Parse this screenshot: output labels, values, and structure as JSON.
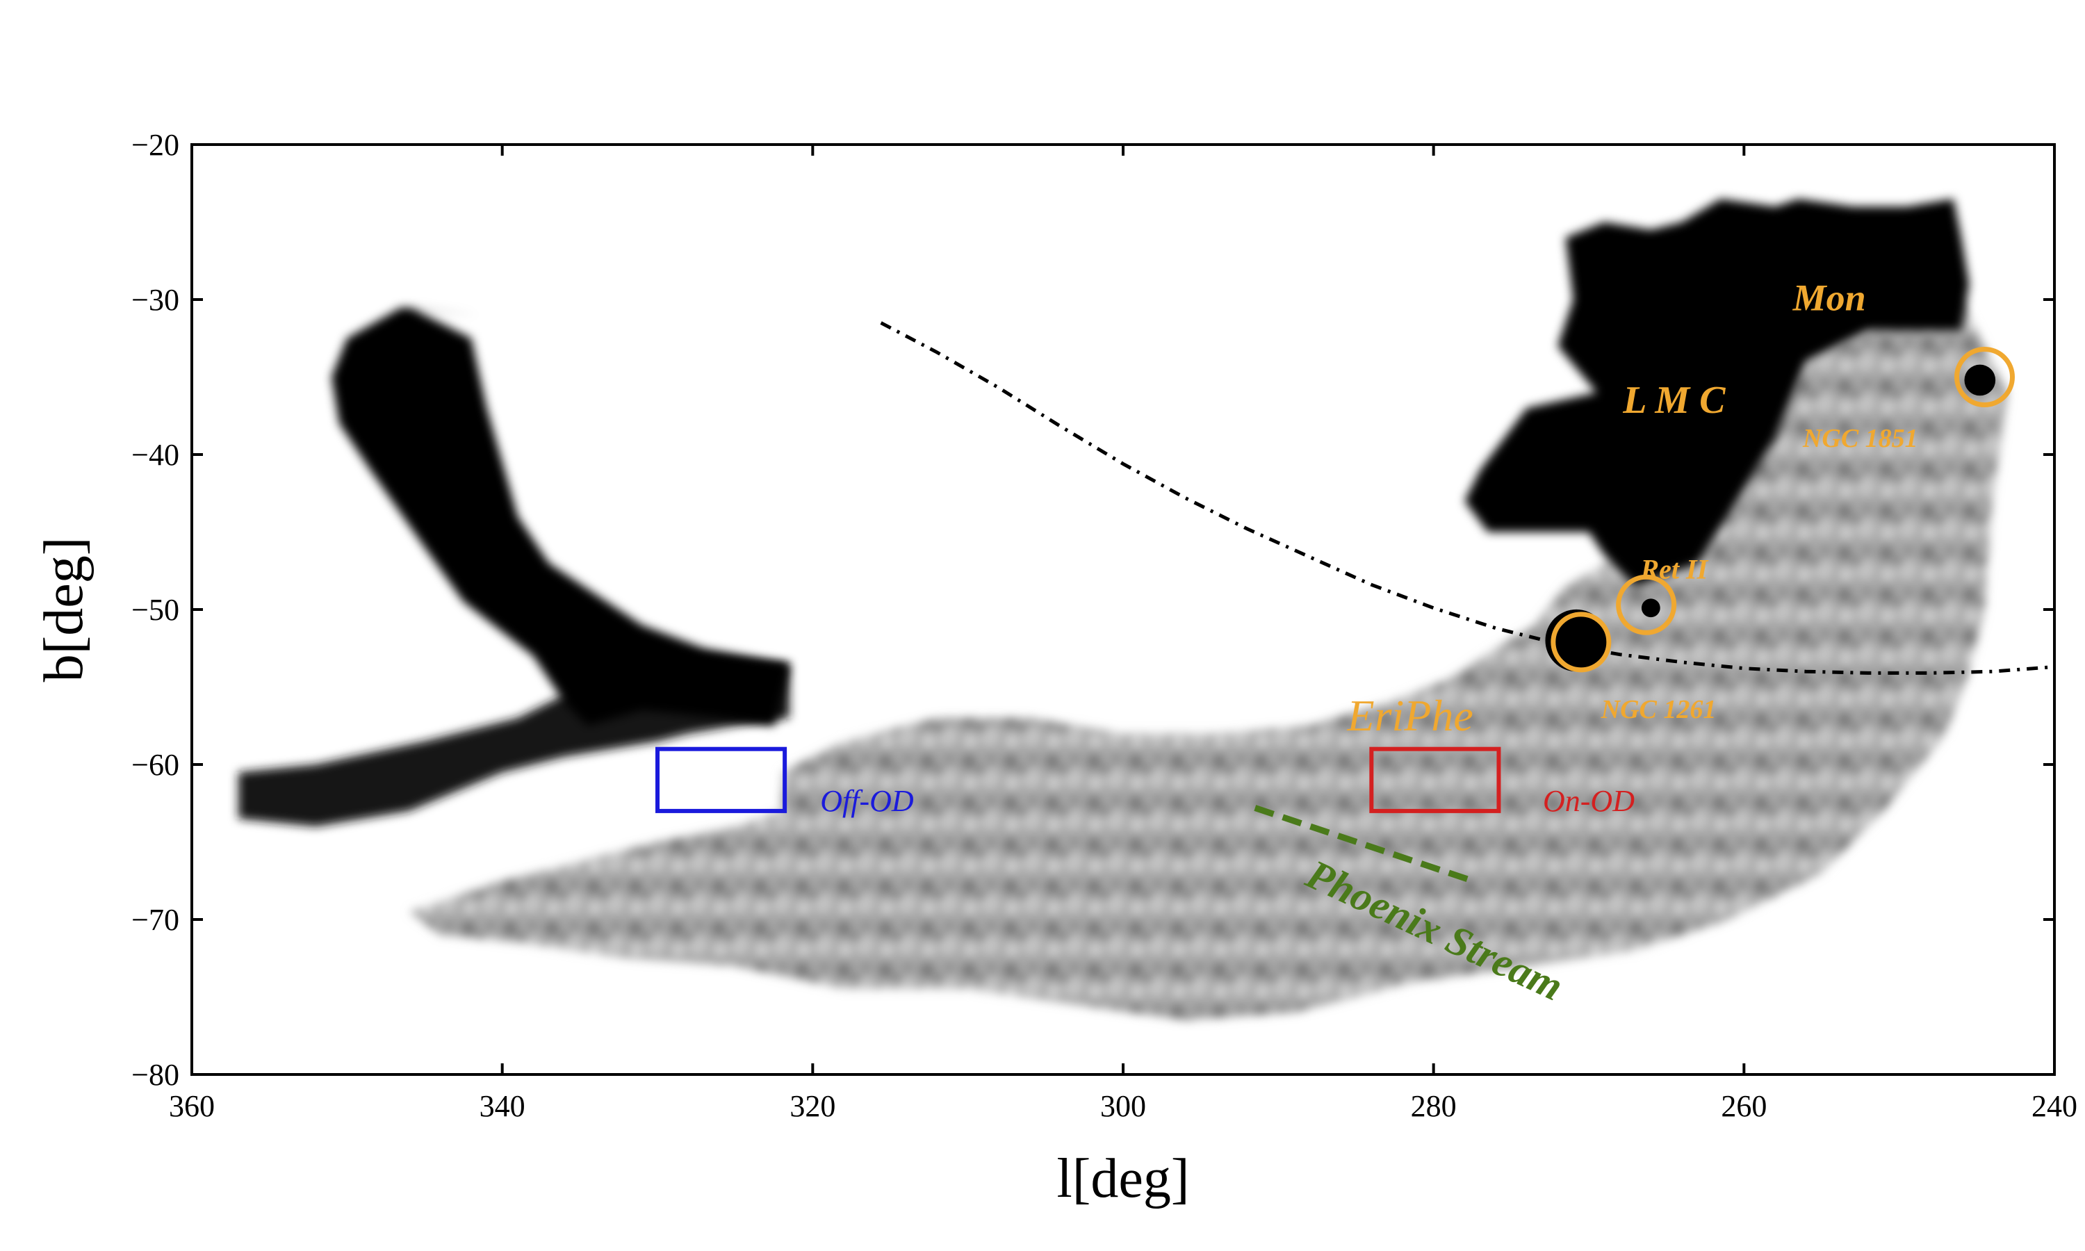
{
  "chart_data": {
    "type": "heatmap",
    "xlabel": "l[deg]",
    "ylabel": "b[deg]",
    "xlim": [
      360,
      240
    ],
    "ylim": [
      -80,
      -20
    ],
    "x_ticks": [
      360,
      340,
      320,
      300,
      280,
      260,
      240
    ],
    "y_ticks": [
      -20,
      -30,
      -40,
      -50,
      -60,
      -70,
      -80
    ],
    "x_tick_labels": [
      "360",
      "340",
      "320",
      "300",
      "280",
      "260",
      "240"
    ],
    "y_tick_labels": [
      "−20",
      "−30",
      "−40",
      "−50",
      "−60",
      "−70",
      "−80"
    ],
    "colormap": "greyscale (white = low density, black = high density)",
    "density_regions": [
      {
        "id": "smc-region",
        "polygon": [
          [
            357,
            -60.5
          ],
          [
            352,
            -60
          ],
          [
            345,
            -58.5
          ],
          [
            339,
            -57
          ],
          [
            335,
            -55
          ],
          [
            332,
            -53.5
          ],
          [
            328,
            -53
          ],
          [
            321.5,
            -53.5
          ],
          [
            321.5,
            -57
          ],
          [
            325,
            -57.5
          ],
          [
            328,
            -58
          ],
          [
            330,
            -58.5
          ],
          [
            336,
            -59.5
          ],
          [
            340,
            -60.5
          ],
          [
            346,
            -63
          ],
          [
            352,
            -64
          ],
          [
            357,
            -63.5
          ]
        ]
      },
      {
        "id": "smc-body",
        "polygon": [
          [
            341.5,
            -31
          ],
          [
            346,
            -30.5
          ],
          [
            342,
            -32.5
          ],
          [
            341,
            -37
          ],
          [
            340,
            -40.5
          ],
          [
            339,
            -44
          ],
          [
            337,
            -47
          ],
          [
            334,
            -49
          ],
          [
            331,
            -51
          ],
          [
            327,
            -52.5
          ],
          [
            321.5,
            -53.5
          ],
          [
            322.5,
            -57.5
          ],
          [
            326,
            -57
          ],
          [
            331,
            -56.5
          ],
          [
            334.5,
            -57.5
          ],
          [
            336,
            -56
          ],
          [
            338,
            -53
          ],
          [
            342.5,
            -49.5
          ],
          [
            345,
            -46
          ],
          [
            348.5,
            -41
          ],
          [
            350.5,
            -38
          ],
          [
            351,
            -35
          ],
          [
            350,
            -32.5
          ],
          [
            346.5,
            -30.5
          ]
        ]
      },
      {
        "id": "lmc-body",
        "polygon": [
          [
            246.5,
            -23.5
          ],
          [
            249.5,
            -24
          ],
          [
            253,
            -24
          ],
          [
            256.5,
            -23.5
          ],
          [
            258,
            -24
          ],
          [
            261.5,
            -23.5
          ],
          [
            264,
            -25
          ],
          [
            266,
            -25.5
          ],
          [
            269,
            -25
          ],
          [
            271.5,
            -26
          ],
          [
            271,
            -30
          ],
          [
            272,
            -33
          ],
          [
            269.5,
            -36
          ],
          [
            274,
            -37
          ],
          [
            277,
            -41
          ],
          [
            278,
            -43
          ],
          [
            276.5,
            -45
          ],
          [
            270,
            -45
          ],
          [
            269,
            -46.5
          ],
          [
            267,
            -48.5
          ],
          [
            263,
            -47
          ],
          [
            258,
            -39
          ],
          [
            256,
            -34
          ],
          [
            252,
            -32
          ],
          [
            246,
            -32
          ],
          [
            245.5,
            -29
          ],
          [
            246,
            -26
          ]
        ]
      },
      {
        "id": "main-stream",
        "polygon": [
          [
            322,
            -60.5
          ],
          [
            318,
            -58.5
          ],
          [
            312,
            -57
          ],
          [
            306,
            -57
          ],
          [
            300,
            -58
          ],
          [
            294,
            -58
          ],
          [
            288,
            -57.5
          ],
          [
            283,
            -56
          ],
          [
            279,
            -54.5
          ],
          [
            276,
            -52.5
          ],
          [
            273.5,
            -51
          ],
          [
            271.5,
            -48.5
          ],
          [
            268,
            -46.5
          ],
          [
            264,
            -45
          ],
          [
            259,
            -40
          ],
          [
            256,
            -34
          ],
          [
            250,
            -31
          ],
          [
            246,
            -30
          ],
          [
            243,
            -36
          ],
          [
            244,
            -43
          ],
          [
            244.5,
            -50
          ],
          [
            245.5,
            -54
          ],
          [
            247,
            -58
          ],
          [
            251,
            -63
          ],
          [
            255,
            -67
          ],
          [
            261,
            -70
          ],
          [
            267,
            -72
          ],
          [
            274,
            -73
          ],
          [
            281,
            -74
          ],
          [
            289,
            -76
          ],
          [
            296,
            -76.5
          ],
          [
            303,
            -75.5
          ],
          [
            310,
            -74.5
          ],
          [
            318,
            -74.5
          ],
          [
            325,
            -73
          ],
          [
            332,
            -72.5
          ],
          [
            339,
            -71.5
          ],
          [
            344,
            -71
          ],
          [
            346,
            -69.5
          ],
          [
            340,
            -67.5
          ],
          [
            336,
            -66.5
          ],
          [
            330,
            -65
          ],
          [
            325,
            -64
          ],
          [
            322,
            -63
          ]
        ]
      }
    ],
    "dense_spots": [
      {
        "l": 270.8,
        "b": -52,
        "r": 2
      },
      {
        "l": 244.8,
        "b": -35.2,
        "r": 1
      },
      {
        "l": 266,
        "b": -49.9,
        "r": 0.6
      }
    ],
    "circles": [
      {
        "label": "NGC 1851",
        "l": 244.5,
        "b": -35,
        "color": "#f0a830"
      },
      {
        "label": "Ret II",
        "l": 266.3,
        "b": -49.7,
        "color": "#f0a830"
      },
      {
        "label": "NGC 1261",
        "l": 270.5,
        "b": -52.1,
        "color": "#f0a830"
      }
    ],
    "boxes": [
      {
        "label": "Off-OD",
        "l_range": [
          330,
          321.8
        ],
        "b_range": [
          -63,
          -59
        ],
        "color": "#1a1adc"
      },
      {
        "label": "On-OD",
        "l_range": [
          284,
          275.8
        ],
        "b_range": [
          -63,
          -59
        ],
        "color": "#d42020"
      }
    ],
    "great_circle_line": {
      "style": "dash-dot",
      "color": "#000000",
      "points": [
        [
          315.6,
          -31.5
        ],
        [
          312,
          -33.4
        ],
        [
          308,
          -35.7
        ],
        [
          304,
          -38.2
        ],
        [
          300,
          -40.6
        ],
        [
          296,
          -42.8
        ],
        [
          292,
          -44.8
        ],
        [
          288,
          -46.6
        ],
        [
          284,
          -48.4
        ],
        [
          280,
          -49.9
        ],
        [
          276,
          -51.2
        ],
        [
          272,
          -52.2
        ],
        [
          268,
          -52.9
        ],
        [
          264,
          -53.4
        ],
        [
          260,
          -53.8
        ],
        [
          256,
          -54
        ],
        [
          252,
          -54.1
        ],
        [
          248,
          -54.1
        ],
        [
          244,
          -54
        ],
        [
          240,
          -53.7
        ]
      ]
    },
    "phoenix_stream_line": {
      "style": "dashed",
      "color": "#4a7a1a",
      "points": [
        [
          291.5,
          -62.8
        ],
        [
          277.5,
          -67.5
        ]
      ]
    },
    "annotations": [
      {
        "text": "Mon",
        "l": 254.5,
        "b": -30.7,
        "color": "#f0a830",
        "bold": true
      },
      {
        "text": "L M C",
        "l": 264.5,
        "b": -37.3,
        "color": "#f0a830",
        "bold": true
      },
      {
        "text": "NGC 1851",
        "l": 252.5,
        "b": -39.5,
        "color": "#f0a830",
        "bold": true
      },
      {
        "text": "Ret II",
        "l": 264.5,
        "b": -48,
        "color": "#f0a830",
        "bold": true
      },
      {
        "text": "NGC 1261",
        "l": 265.5,
        "b": -57,
        "color": "#f0a830",
        "bold": true
      },
      {
        "text": "EriPhe",
        "l": 281.5,
        "b": -57.8,
        "color": "#f0a830",
        "bold": false
      },
      {
        "text": "Off-OD",
        "l": 316.5,
        "b": -63,
        "color": "#1a1adc",
        "bold": false
      },
      {
        "text": "On-OD",
        "l": 270,
        "b": -63,
        "color": "#d42020",
        "bold": false
      },
      {
        "text": "Phoenix Stream",
        "l": 280.3,
        "b": -71.5,
        "color": "#4a7a1a",
        "bold": true
      }
    ]
  }
}
